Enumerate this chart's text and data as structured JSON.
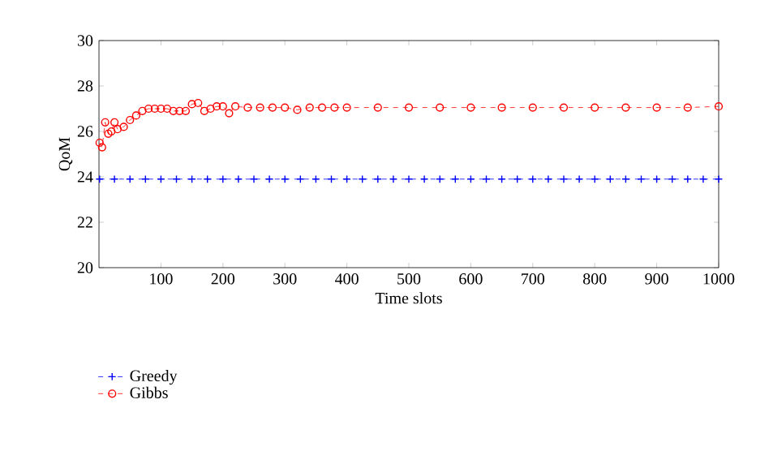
{
  "chart_data": {
    "type": "line",
    "xlabel": "Time slots",
    "ylabel": "QoM",
    "xlim": [
      0,
      1000
    ],
    "ylim": [
      20,
      30
    ],
    "xticks": [
      100,
      200,
      300,
      400,
      500,
      600,
      700,
      800,
      900,
      1000
    ],
    "yticks": [
      20,
      22,
      24,
      26,
      28,
      30
    ],
    "legend": "bottom left",
    "line_style": "dashed",
    "series": [
      {
        "name": "Greedy",
        "color": "#0000ff",
        "marker": "cross",
        "x": [
          1,
          25,
          50,
          75,
          100,
          125,
          150,
          175,
          200,
          225,
          250,
          275,
          300,
          325,
          350,
          375,
          400,
          425,
          450,
          475,
          500,
          525,
          550,
          575,
          600,
          625,
          650,
          675,
          700,
          725,
          750,
          775,
          800,
          825,
          850,
          875,
          900,
          925,
          950,
          975,
          1000
        ],
        "values": [
          23.9,
          23.9,
          23.9,
          23.9,
          23.9,
          23.9,
          23.9,
          23.9,
          23.9,
          23.9,
          23.9,
          23.9,
          23.9,
          23.9,
          23.9,
          23.9,
          23.9,
          23.9,
          23.9,
          23.9,
          23.9,
          23.9,
          23.9,
          23.9,
          23.9,
          23.9,
          23.9,
          23.9,
          23.9,
          23.9,
          23.9,
          23.9,
          23.9,
          23.9,
          23.9,
          23.9,
          23.9,
          23.9,
          23.9,
          23.9,
          23.9
        ]
      },
      {
        "name": "Gibbs",
        "color": "#ff0000",
        "marker": "circle",
        "x": [
          1,
          5,
          10,
          15,
          20,
          25,
          30,
          40,
          50,
          60,
          70,
          80,
          90,
          100,
          110,
          120,
          130,
          140,
          150,
          160,
          170,
          180,
          190,
          200,
          210,
          220,
          240,
          260,
          280,
          300,
          320,
          340,
          360,
          380,
          400,
          450,
          500,
          550,
          600,
          650,
          700,
          750,
          800,
          850,
          900,
          950,
          1000
        ],
        "values": [
          25.5,
          25.3,
          26.4,
          25.9,
          26.0,
          26.4,
          26.1,
          26.2,
          26.5,
          26.7,
          26.9,
          27.0,
          27.0,
          27.0,
          27.0,
          26.9,
          26.9,
          26.9,
          27.2,
          27.25,
          26.9,
          27.0,
          27.1,
          27.1,
          26.8,
          27.1,
          27.05,
          27.05,
          27.05,
          27.05,
          26.95,
          27.05,
          27.05,
          27.05,
          27.05,
          27.05,
          27.05,
          27.05,
          27.05,
          27.05,
          27.05,
          27.05,
          27.05,
          27.05,
          27.05,
          27.05,
          27.1
        ]
      }
    ]
  }
}
